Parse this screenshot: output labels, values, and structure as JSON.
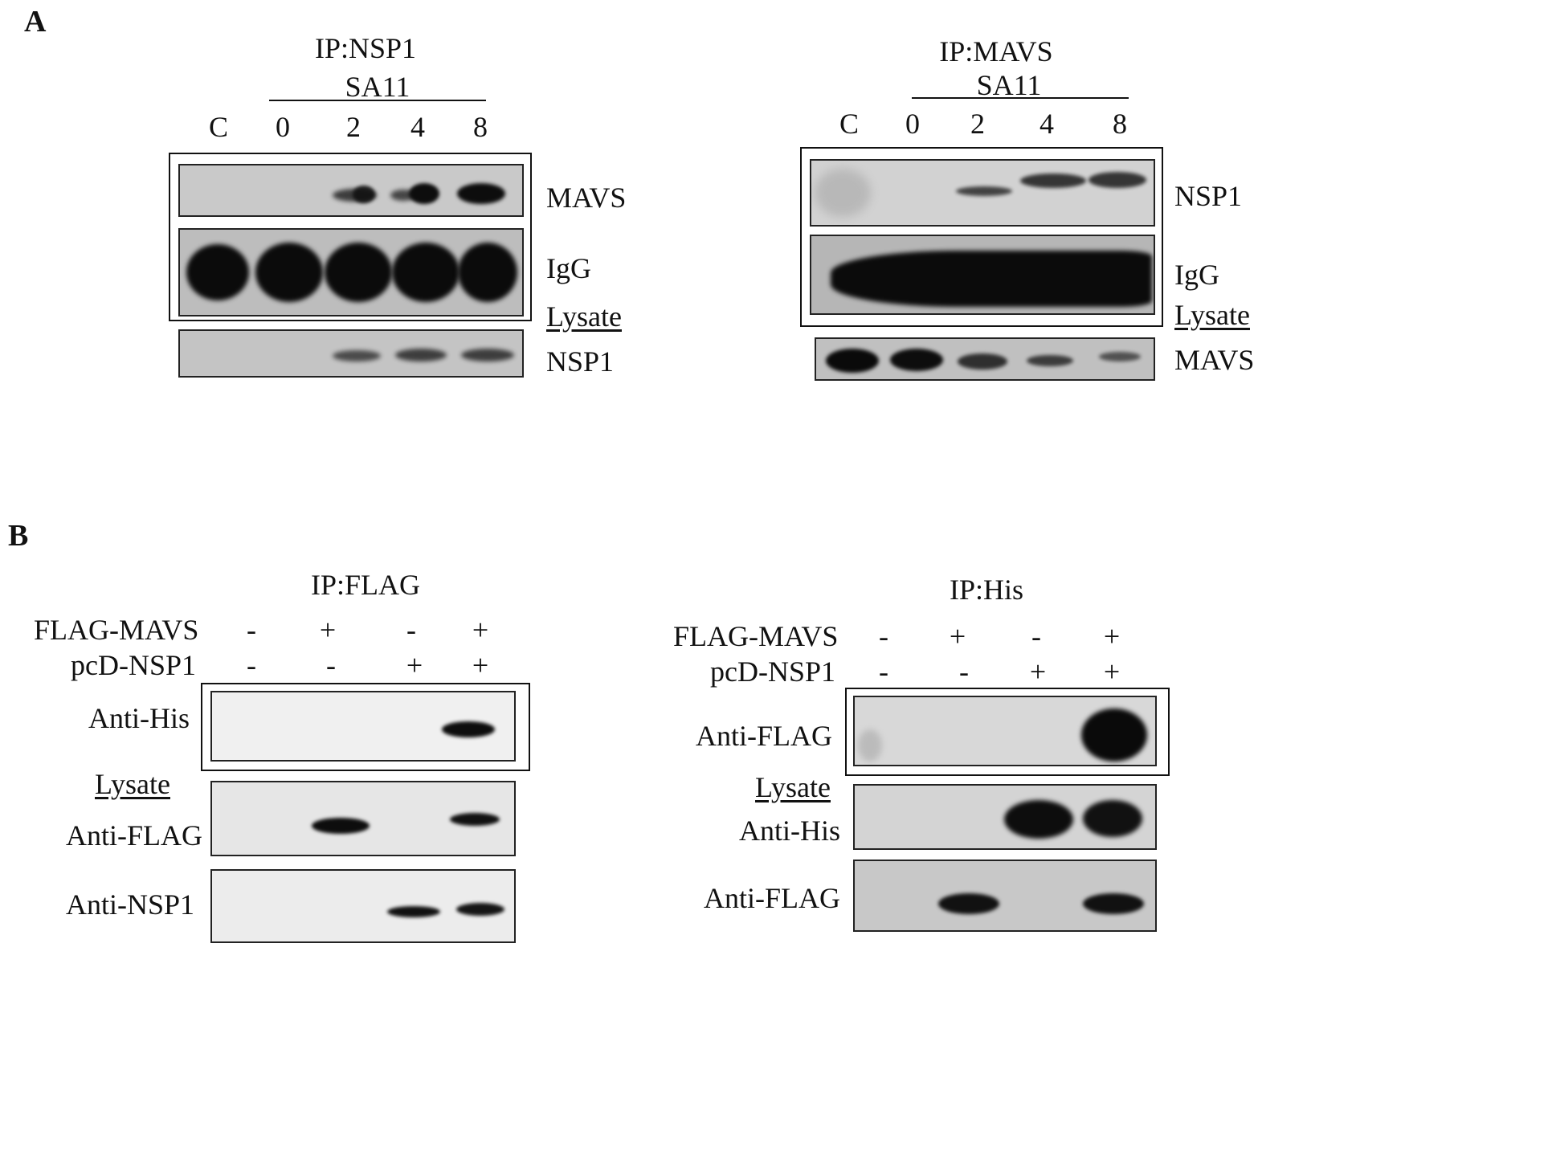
{
  "panel_a": {
    "letter": "A",
    "left": {
      "ip_title": "IP:NSP1",
      "virus_label": "SA11",
      "lanes": [
        "C",
        "0",
        "2",
        "4",
        "8"
      ],
      "blot_labels": [
        "MAVS",
        "IgG",
        "NSP1"
      ],
      "lysate_label": "Lysate",
      "band_intensity": {
        "MAVS": [
          0,
          0,
          0.55,
          0.65,
          0.8
        ],
        "IgG": [
          1,
          1,
          1,
          1,
          1
        ],
        "NSP1": [
          0,
          0,
          0.4,
          0.5,
          0.55
        ]
      }
    },
    "right": {
      "ip_title": "IP:MAVS",
      "virus_label": "SA11",
      "lanes": [
        "C",
        "0",
        "2",
        "4",
        "8"
      ],
      "blot_labels": [
        "NSP1",
        "IgG",
        "MAVS"
      ],
      "lysate_label": "Lysate",
      "band_intensity": {
        "NSP1": [
          0,
          0,
          0.55,
          0.7,
          0.75
        ],
        "IgG": [
          1,
          1,
          1,
          1,
          1
        ],
        "MAVS": [
          0.95,
          0.85,
          0.6,
          0.5,
          0.35
        ]
      }
    }
  },
  "panel_b": {
    "letter": "B",
    "left": {
      "ip_title": "IP:FLAG",
      "row1_label": "FLAG-MAVS",
      "row1_signs": [
        "-",
        "+",
        "-",
        "+"
      ],
      "row2_label": "pcD-NSP1",
      "row2_signs": [
        "-",
        "-",
        "+",
        "+"
      ],
      "blot_labels": [
        "Anti-His",
        "Anti-FLAG",
        "Anti-NSP1"
      ],
      "lysate_label": "Lysate",
      "band_intensity": {
        "Anti-His": [
          0,
          0,
          0,
          0.8
        ],
        "Anti-FLAG": [
          0,
          0.85,
          0,
          0.75
        ],
        "Anti-NSP1": [
          0,
          0,
          0.8,
          0.7
        ]
      }
    },
    "right": {
      "ip_title": "IP:His",
      "row1_label": "FLAG-MAVS",
      "row1_signs": [
        "-",
        "+",
        "-",
        "+"
      ],
      "row2_label": "pcD-NSP1",
      "row2_signs": [
        "-",
        "-",
        "+",
        "+"
      ],
      "blot_labels": [
        "Anti-FLAG",
        "Anti-His",
        "Anti-FLAG"
      ],
      "lysate_label": "Lysate",
      "band_intensity": {
        "Anti-FLAG-ip": [
          0,
          0,
          0,
          1
        ],
        "Anti-His": [
          0,
          0,
          0.9,
          0.85
        ],
        "Anti-FLAG-lysate": [
          0,
          0.7,
          0,
          0.75
        ]
      }
    }
  },
  "colors": {
    "membrane_a": "#c9c9c9",
    "membrane_b": "#ededed",
    "band": "#0d0d0d"
  }
}
